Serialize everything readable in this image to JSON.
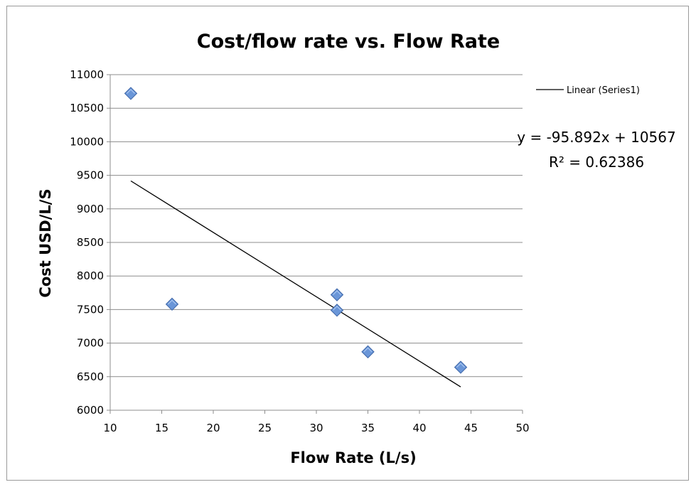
{
  "chart_data": {
    "type": "scatter",
    "title": "Cost/flow rate vs. Flow Rate",
    "xlabel": "Flow Rate (L/s)",
    "ylabel": "Cost USD/L/S",
    "xlim": [
      10,
      50
    ],
    "ylim": [
      6000,
      11000
    ],
    "x_ticks": [
      10,
      15,
      20,
      25,
      30,
      35,
      40,
      45,
      50
    ],
    "y_ticks": [
      6000,
      6500,
      7000,
      7500,
      8000,
      8500,
      9000,
      9500,
      10000,
      10500,
      11000
    ],
    "grid": "horizontal",
    "legend_position": "right",
    "series": [
      {
        "points": [
          {
            "x": 12,
            "y": 10720
          },
          {
            "x": 16,
            "y": 7580
          },
          {
            "x": 32,
            "y": 7720
          },
          {
            "x": 32,
            "y": 7490
          },
          {
            "x": 35,
            "y": 6870
          },
          {
            "x": 44,
            "y": 6640
          }
        ],
        "color": "#6a96d8",
        "marker": "diamond"
      }
    ],
    "trendline": {
      "label": "Linear (Series1)",
      "slope": -95.892,
      "intercept": 10567,
      "x_range": [
        12,
        44
      ],
      "equation": "y = -95.892x + 10567",
      "r_squared": "R² = 0.62386",
      "color": "#000000"
    }
  }
}
